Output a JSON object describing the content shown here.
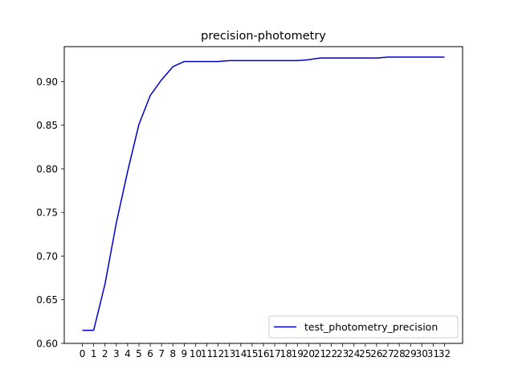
{
  "chart_data": {
    "type": "line",
    "title": "precision-photometry",
    "xlabel": "",
    "ylabel": "",
    "x": [
      0,
      1,
      2,
      3,
      4,
      5,
      6,
      7,
      8,
      9,
      10,
      11,
      12,
      13,
      14,
      15,
      16,
      17,
      18,
      19,
      20,
      21,
      22,
      23,
      24,
      25,
      26,
      27,
      28,
      29,
      30,
      31,
      32
    ],
    "xlim": [
      -1.6,
      33.6
    ],
    "ylim": [
      0.6,
      0.94
    ],
    "y_ticks": [
      0.6,
      0.65,
      0.7,
      0.75,
      0.8,
      0.85,
      0.9
    ],
    "grid": false,
    "legend_position": "lower right",
    "series": [
      {
        "name": "test_photometry_precision",
        "color": "#0000cc",
        "values": [
          0.615,
          0.615,
          0.668,
          0.738,
          0.797,
          0.851,
          0.884,
          0.902,
          0.917,
          0.923,
          0.923,
          0.923,
          0.923,
          0.924,
          0.924,
          0.924,
          0.924,
          0.924,
          0.924,
          0.924,
          0.925,
          0.927,
          0.927,
          0.927,
          0.927,
          0.927,
          0.927,
          0.928,
          0.928,
          0.928,
          0.928,
          0.928,
          0.928
        ]
      }
    ]
  }
}
